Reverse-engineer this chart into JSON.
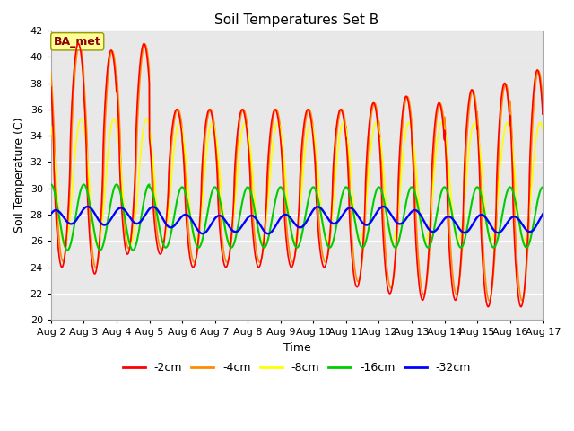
{
  "title": "Soil Temperatures Set B",
  "xlabel": "Time",
  "ylabel": "Soil Temperature (C)",
  "ylim": [
    20,
    42
  ],
  "xlim": [
    0,
    360
  ],
  "annotation": "BA_met",
  "annotation_color": "#8B0000",
  "annotation_bg": "#FFFF99",
  "bg_color": "#E8E8E8",
  "grid_color": "#FFFFFF",
  "line_color_2cm": "#FF0000",
  "line_color_4cm": "#FF8C00",
  "line_color_8cm": "#FFFF00",
  "line_color_16cm": "#00CC00",
  "line_color_32cm": "#0000FF",
  "xtick_labels": [
    "Aug 2",
    "Aug 3",
    "Aug 4",
    "Aug 5",
    "Aug 6",
    "Aug 7",
    "Aug 8",
    "Aug 9",
    "Aug 10",
    "Aug 11",
    "Aug 12",
    "Aug 13",
    "Aug 14",
    "Aug 15",
    "Aug 16",
    "Aug 17"
  ],
  "xtick_positions": [
    0,
    24,
    48,
    72,
    96,
    120,
    144,
    168,
    192,
    216,
    240,
    264,
    288,
    312,
    336,
    360
  ],
  "ytick_positions": [
    20,
    22,
    24,
    26,
    28,
    30,
    32,
    34,
    36,
    38,
    40,
    42
  ]
}
